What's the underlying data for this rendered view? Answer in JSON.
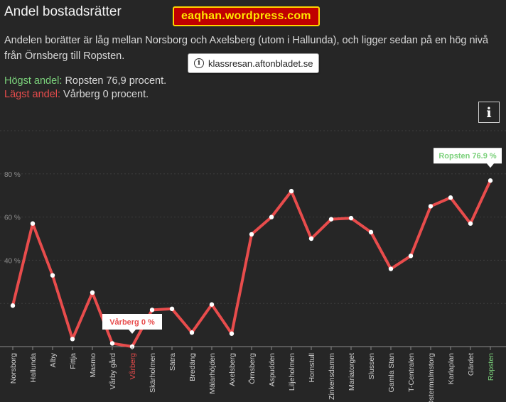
{
  "header": {
    "title": "Andel bostadsrätter",
    "description": "Andelen borätter är låg mellan Norsborg och Axelsberg (utom i Hallunda), och ligger sedan på en hög nivå från Örnsberg till Ropsten.",
    "highest_label": "Högst andel:",
    "highest_value": "Ropsten 76,9 procent.",
    "lowest_label": "Lägst andel:",
    "lowest_value": "Vårberg 0 procent.",
    "info_button": "i"
  },
  "overlays": {
    "watermark": "eaqhan.wordpress.com",
    "url_chip": "klassresan.aftonbladet.se",
    "info_icon": "i"
  },
  "colors": {
    "background": "#262626",
    "line": "#e84c4c",
    "highest": "#7bd17b",
    "lowest": "#e84c4c",
    "grid": "#3d3d3d"
  },
  "chart_data": {
    "type": "line",
    "title": "Andel bostadsrätter",
    "xlabel": "",
    "ylabel": "",
    "ylim": [
      0,
      100
    ],
    "yticks": [
      0,
      20,
      40,
      60,
      80,
      100
    ],
    "ytick_labels": [
      "",
      "",
      "40 %",
      "60 %",
      "80 %",
      ""
    ],
    "grid": true,
    "categories": [
      "Norsborg",
      "Hallunda",
      "Alby",
      "Fittja",
      "Masmo",
      "Vårby gård",
      "Vårberg",
      "Skärholmen",
      "Sätra",
      "Bredäng",
      "Mälarhöjden",
      "Axelsberg",
      "Örnsberg",
      "Aspudden",
      "Liljeholmen",
      "Hornstull",
      "Zinkensdamm",
      "Mariatorget",
      "Slussen",
      "Gamla Stan",
      "T-Centralen",
      "Östermalmstorg",
      "Karlaplan",
      "Gärdet",
      "Ropsten"
    ],
    "category_label_highlight": {
      "Vårberg": "lowest",
      "Ropsten": "highest"
    },
    "series": [
      {
        "values": [
          19,
          57,
          33,
          3.5,
          25,
          1.5,
          0,
          17,
          17.5,
          6.5,
          19.5,
          6,
          52,
          60,
          72,
          50,
          59,
          59.5,
          53,
          36,
          42,
          65,
          69,
          57,
          76.9
        ]
      }
    ],
    "annotations": [
      {
        "category": "Vårberg",
        "text": "Vårberg 0 %",
        "kind": "lowest"
      },
      {
        "category": "Ropsten",
        "text": "Ropsten 76.9 %",
        "kind": "highest"
      }
    ]
  }
}
